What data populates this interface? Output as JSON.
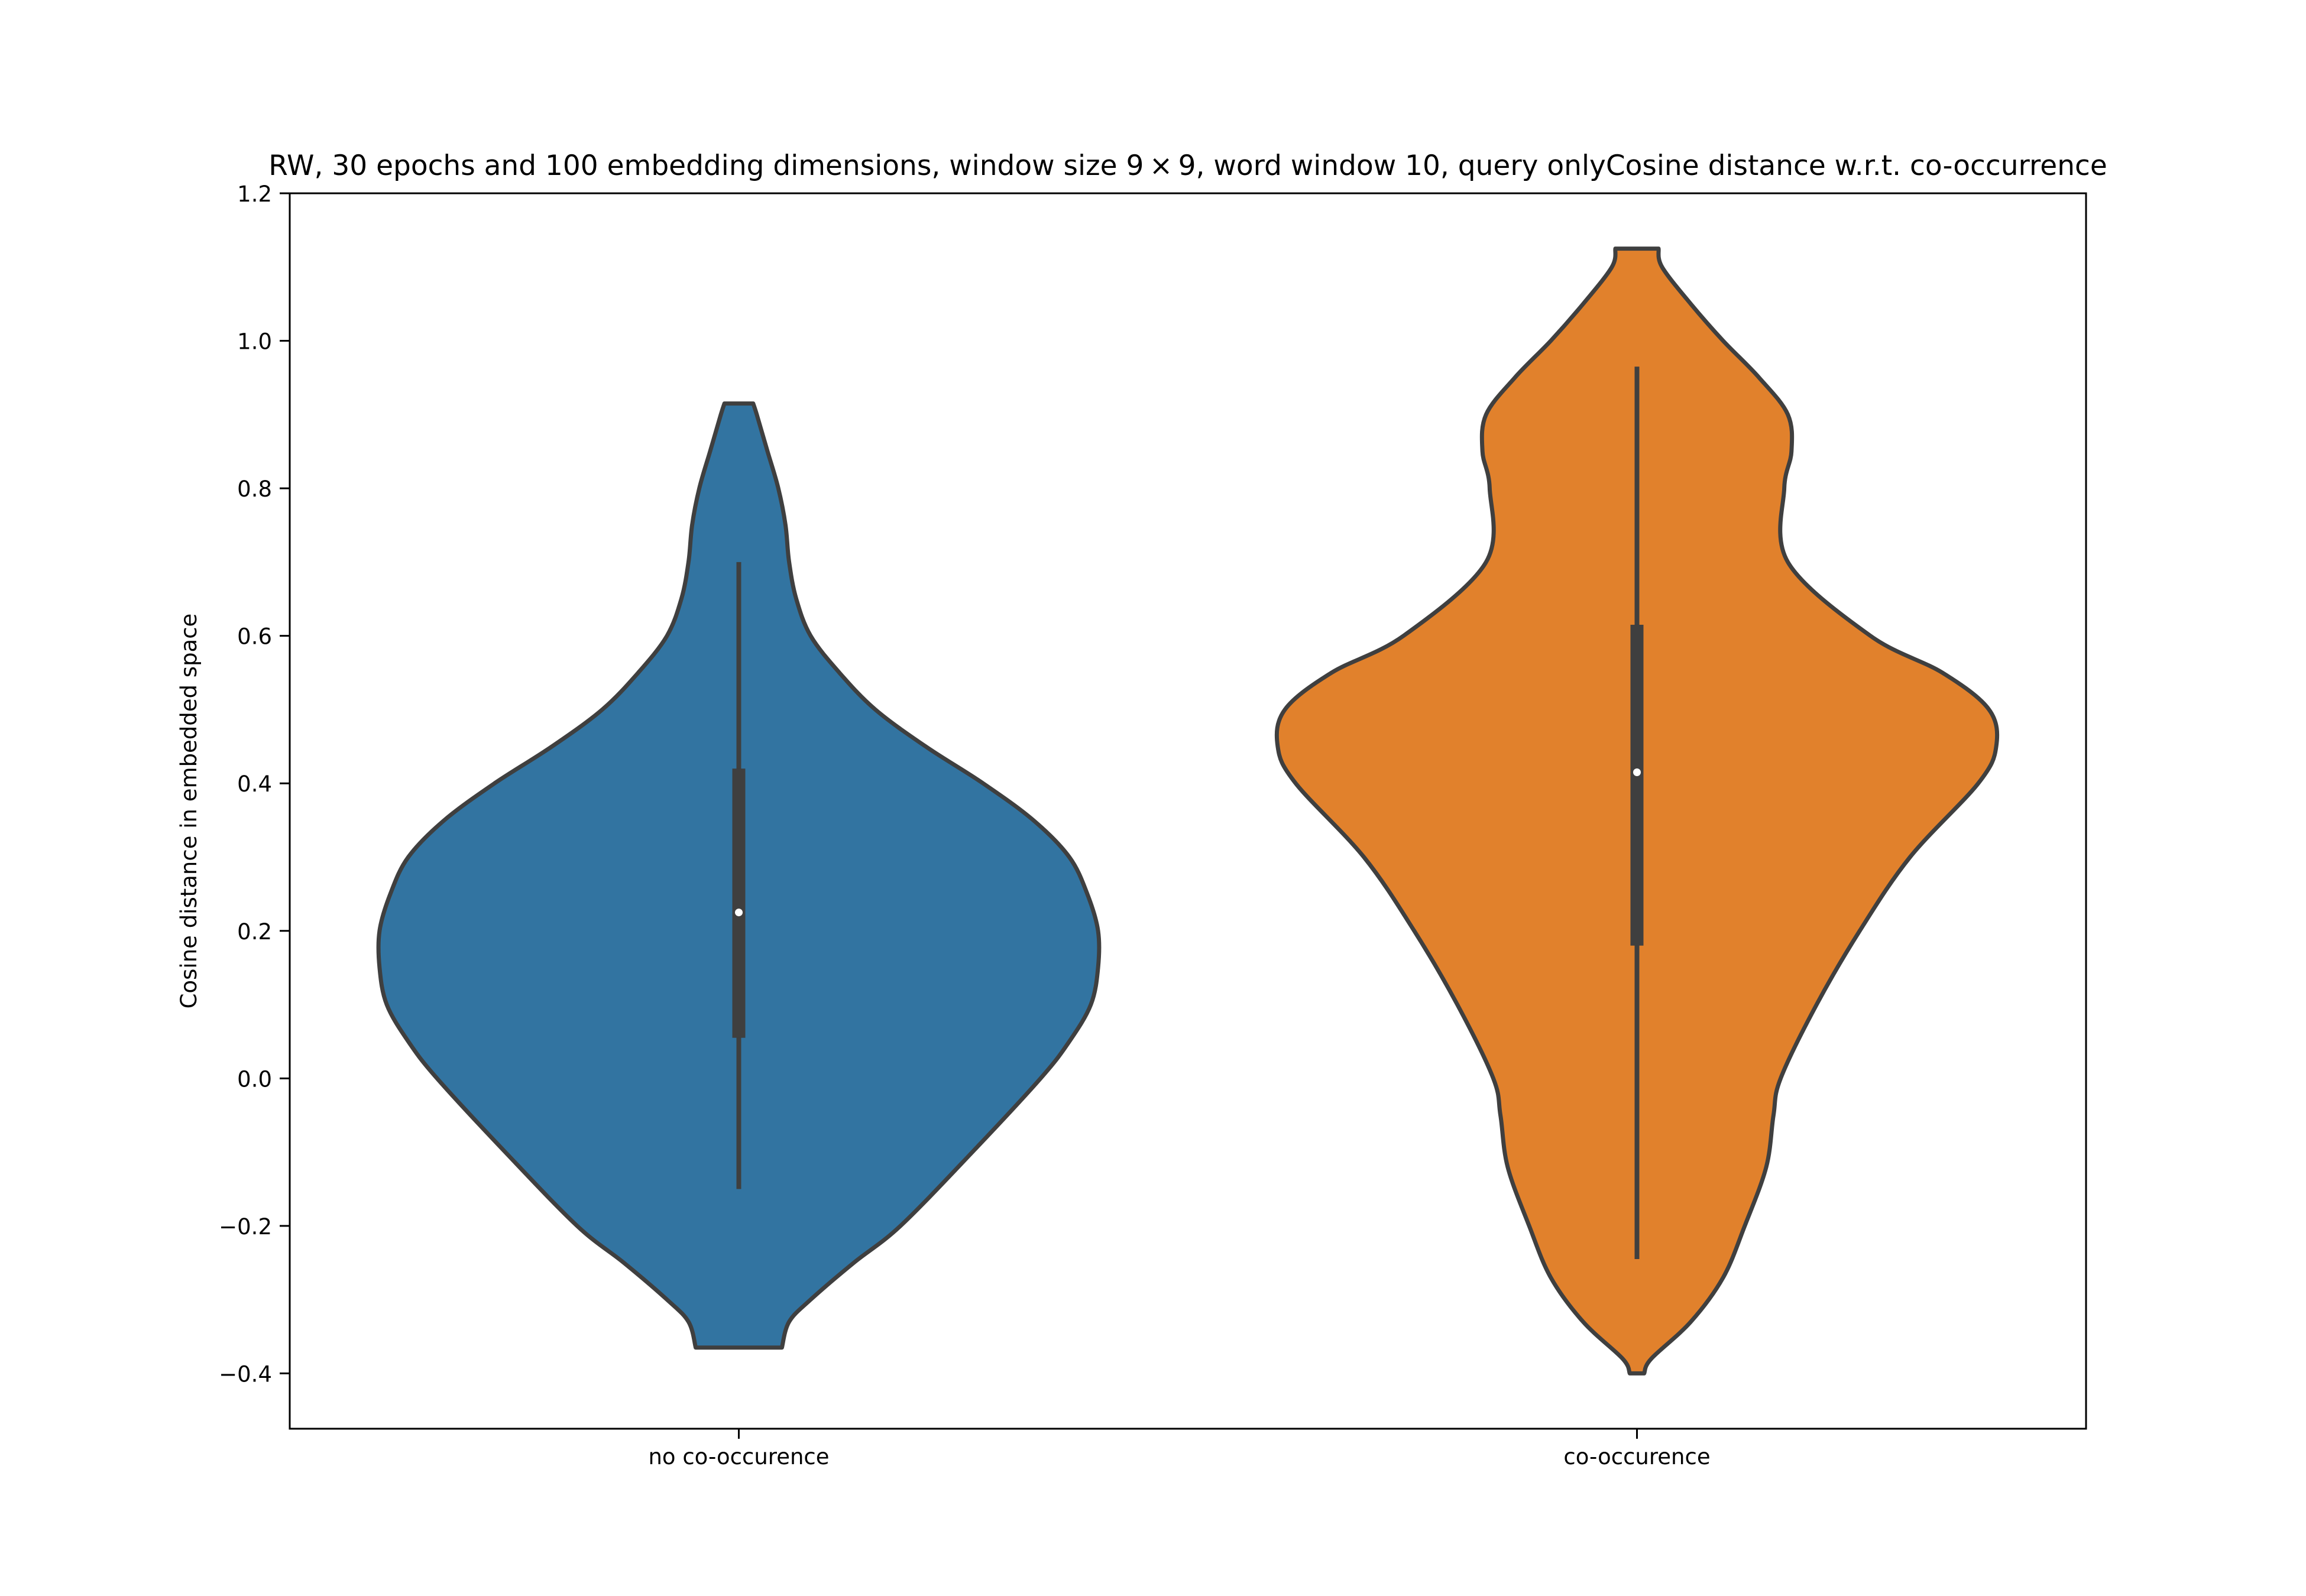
{
  "chart_data": {
    "type": "violin",
    "title": "RW, 30 epochs and 100 embedding dimensions, window size 9 × 9, word window 10, query onlyCosine distance w.r.t. co-occurrence",
    "xlabel": "",
    "ylabel": "Cosine distance in embedded space",
    "ylim": [
      -0.475,
      1.2
    ],
    "yticks": [
      -0.4,
      -0.2,
      0.0,
      0.2,
      0.4,
      0.6,
      0.8,
      1.0,
      1.2
    ],
    "ytick_labels": [
      "−0.4",
      "−0.2",
      "0.0",
      "0.2",
      "0.4",
      "0.6",
      "0.8",
      "1.0",
      "1.2"
    ],
    "categories": [
      "no co-occurence",
      "co-occurence"
    ],
    "grid": false,
    "series": [
      {
        "category": "no co-occurence",
        "color": "#3274a1",
        "min": -0.365,
        "max": 0.915,
        "whisker_low": -0.15,
        "q1": 0.055,
        "median": 0.225,
        "q3": 0.42,
        "whisker_high": 0.7,
        "density_y": [
          -0.365,
          -0.33,
          -0.3,
          -0.25,
          -0.2,
          -0.1,
          0.0,
          0.05,
          0.1,
          0.15,
          0.2,
          0.25,
          0.3,
          0.35,
          0.4,
          0.45,
          0.5,
          0.55,
          0.6,
          0.65,
          0.7,
          0.75,
          0.8,
          0.85,
          0.9,
          0.915
        ],
        "density_width": [
          0.12,
          0.14,
          0.2,
          0.32,
          0.45,
          0.65,
          0.84,
          0.92,
          0.98,
          1.0,
          1.0,
          0.97,
          0.92,
          0.82,
          0.68,
          0.52,
          0.38,
          0.28,
          0.2,
          0.16,
          0.14,
          0.13,
          0.11,
          0.08,
          0.05,
          0.04
        ]
      },
      {
        "category": "co-occurence",
        "color": "#e1812c",
        "min": -0.4,
        "max": 1.125,
        "whisker_low": -0.245,
        "q1": 0.18,
        "median": 0.415,
        "q3": 0.615,
        "whisker_high": 0.965,
        "density_y": [
          -0.4,
          -0.38,
          -0.33,
          -0.27,
          -0.2,
          -0.12,
          -0.05,
          0.0,
          0.1,
          0.2,
          0.3,
          0.4,
          0.45,
          0.5,
          0.55,
          0.6,
          0.7,
          0.8,
          0.85,
          0.9,
          0.95,
          1.0,
          1.05,
          1.1,
          1.125
        ],
        "density_width": [
          0.02,
          0.04,
          0.15,
          0.24,
          0.3,
          0.36,
          0.38,
          0.4,
          0.5,
          0.62,
          0.76,
          0.95,
          1.0,
          0.98,
          0.85,
          0.65,
          0.42,
          0.41,
          0.43,
          0.42,
          0.34,
          0.24,
          0.15,
          0.07,
          0.06
        ]
      }
    ]
  }
}
